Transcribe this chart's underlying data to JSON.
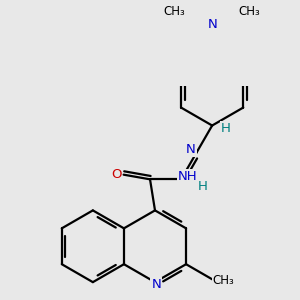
{
  "bg_color": "#e8e8e8",
  "atom_color_N": "#0000cc",
  "atom_color_O": "#cc0000",
  "atom_color_H": "#008080",
  "atom_color_C": "#000000",
  "bond_color": "#000000",
  "bond_lw": 1.6,
  "doffset": 0.055,
  "figsize": [
    3.0,
    3.0
  ],
  "dpi": 100,
  "xlim": [
    -0.3,
    3.2
  ],
  "ylim": [
    -0.1,
    3.3
  ]
}
